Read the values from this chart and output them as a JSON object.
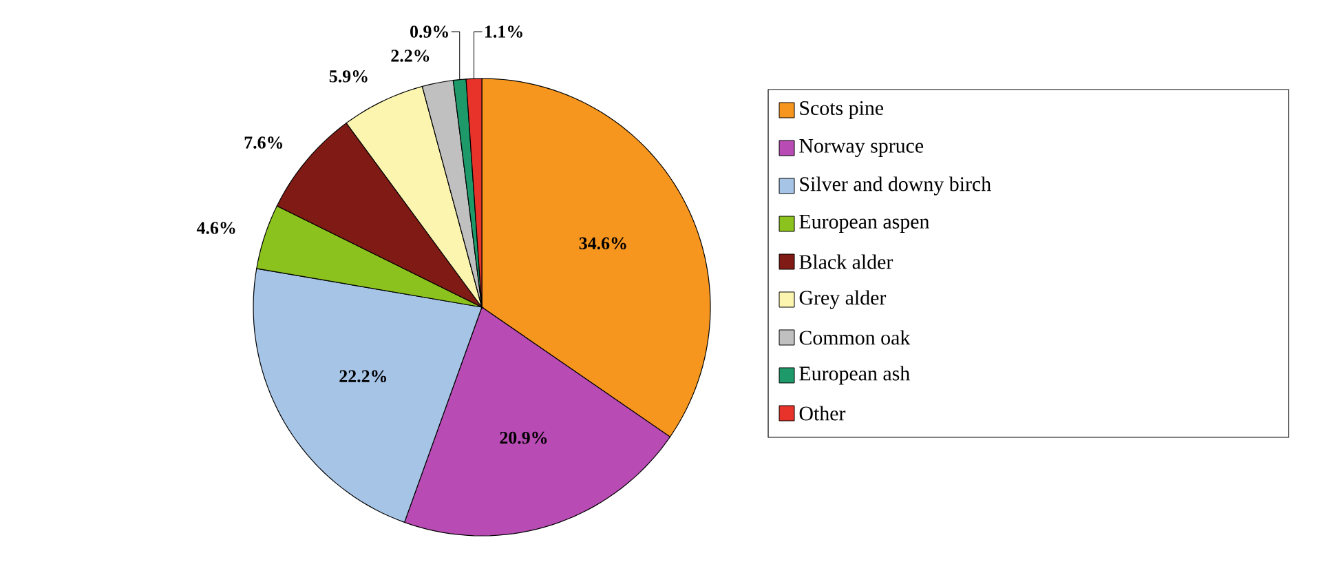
{
  "chart_data": {
    "type": "pie",
    "categories": [
      "Scots pine",
      "Norway spruce",
      "Silver and downy birch",
      "European aspen",
      "Black alder",
      "Grey alder",
      "Common oak",
      "European ash",
      "Other"
    ],
    "values": [
      34.6,
      20.9,
      22.2,
      4.6,
      7.6,
      5.9,
      2.2,
      0.9,
      1.1
    ],
    "value_labels": [
      "34.6%",
      "20.9%",
      "22.2%",
      "4.6%",
      "7.6%",
      "5.9%",
      "2.2%",
      "0.9%",
      "1.1%"
    ],
    "colors": [
      "#f7961e",
      "#b84bb4",
      "#a6c4e6",
      "#8cc21e",
      "#7f1a14",
      "#fbf5b0",
      "#c0c0c0",
      "#1e9a6a",
      "#e8332a"
    ],
    "legend": "right"
  }
}
